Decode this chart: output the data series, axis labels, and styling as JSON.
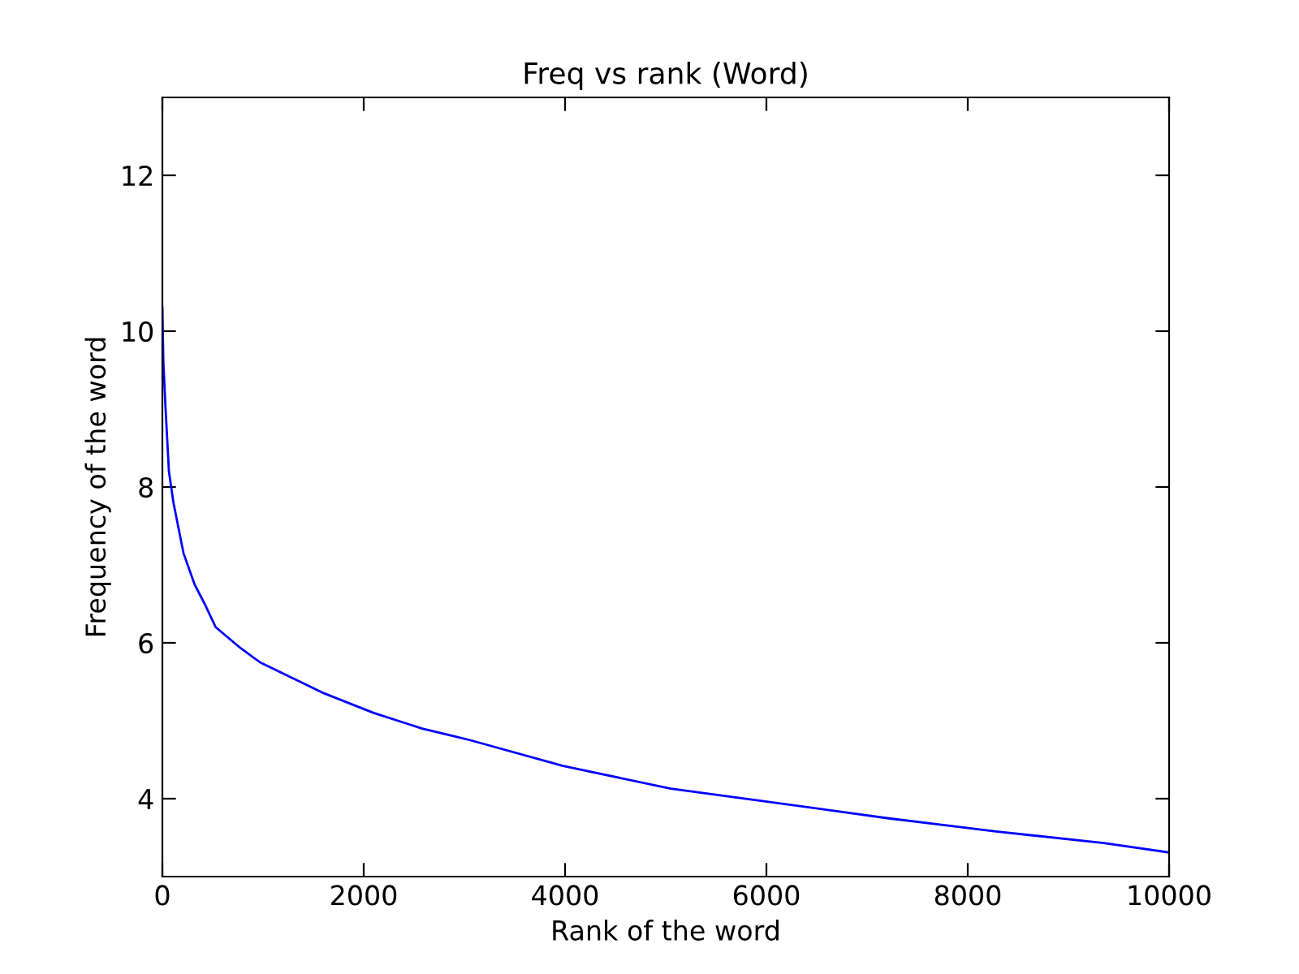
{
  "chart_data": {
    "type": "line",
    "title": "Freq vs rank (Word)",
    "xlabel": "Rank of the word",
    "ylabel": "Frequency of the word",
    "x": [
      0,
      10,
      30,
      65,
      110,
      210,
      320,
      420,
      530,
      760,
      970,
      1290,
      1610,
      2100,
      2580,
      2900,
      3060,
      3980,
      5050,
      6020,
      7200,
      8280,
      9350,
      10000
    ],
    "series": [
      {
        "color": "#0000ff",
        "values": [
          10.3,
          9.6,
          9.05,
          8.2,
          7.8,
          7.15,
          6.75,
          6.5,
          6.2,
          5.95,
          5.75,
          5.55,
          5.35,
          5.1,
          4.9,
          4.8,
          4.75,
          4.42,
          4.13,
          3.96,
          3.75,
          3.58,
          3.43,
          3.31
        ]
      }
    ],
    "xlim": [
      0,
      10000
    ],
    "xticks": [
      0,
      2000,
      4000,
      6000,
      8000,
      10000
    ],
    "ylim": [
      3,
      13
    ],
    "yticks": [
      4,
      6,
      8,
      10,
      12
    ],
    "grid": false,
    "legend": false
  }
}
